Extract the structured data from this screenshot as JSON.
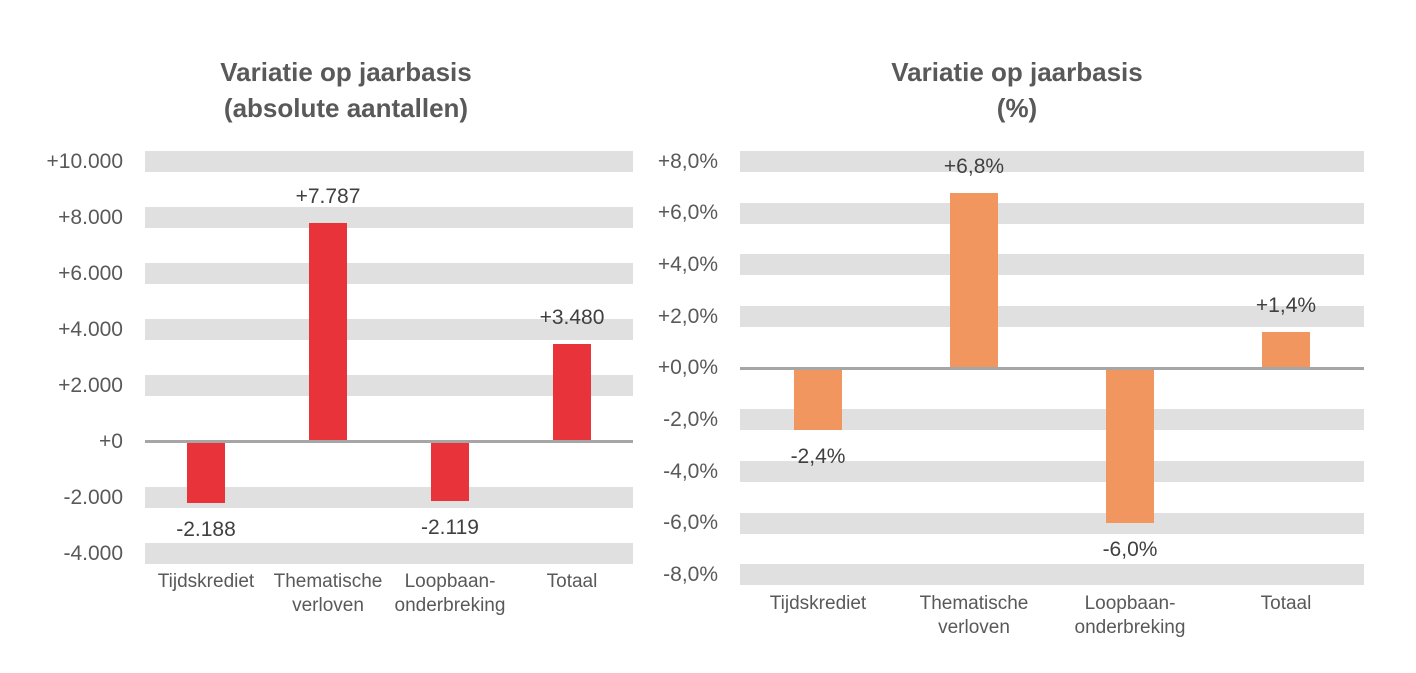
{
  "colors": {
    "stripe": "#E0E0E0",
    "axis_line": "#A6A6A6",
    "axis_text": "#595959",
    "value_text": "#404040",
    "title_text": "#595959",
    "red": "#E8333B",
    "orange": "#F0965E"
  },
  "chart_data": [
    {
      "type": "bar",
      "title": "Variatie op jaarbasis (absolute aantallen)",
      "title_lines": [
        "Variatie op jaarbasis",
        "(absolute aantallen)"
      ],
      "categories": [
        "Tijdskrediet",
        "Thematische verloven",
        "Loopbaan-onderbreking",
        "Totaal"
      ],
      "category_lines": [
        [
          "Tijdskrediet"
        ],
        [
          "Thematische",
          "verloven"
        ],
        [
          "Loopbaan-",
          "onderbreking"
        ],
        [
          "Totaal"
        ]
      ],
      "values": [
        -2188,
        7787,
        -2119,
        3480
      ],
      "value_labels": [
        "-2.188",
        "+7.787",
        "-2.119",
        "+3.480"
      ],
      "bar_color": "#E8333B",
      "ylim": [
        -4000,
        10000
      ],
      "tick_step": 2000,
      "y_ticks": [
        {
          "value": 10000,
          "label": "+10.000"
        },
        {
          "value": 8000,
          "label": "+8.000"
        },
        {
          "value": 6000,
          "label": "+6.000"
        },
        {
          "value": 4000,
          "label": "+4.000"
        },
        {
          "value": 2000,
          "label": "+2.000"
        },
        {
          "value": 0,
          "label": "+0"
        },
        {
          "value": -2000,
          "label": "-2.000"
        },
        {
          "value": -4000,
          "label": "-4.000"
        }
      ],
      "grid": "striped-bands",
      "legend": "none",
      "xlabel": "",
      "ylabel": ""
    },
    {
      "type": "bar",
      "title": "Variatie op jaarbasis (%)",
      "title_lines": [
        "Variatie op jaarbasis",
        "(%)"
      ],
      "categories": [
        "Tijdskrediet",
        "Thematische verloven",
        "Loopbaan-onderbreking",
        "Totaal"
      ],
      "category_lines": [
        [
          "Tijdskrediet"
        ],
        [
          "Thematische",
          "verloven"
        ],
        [
          "Loopbaan-",
          "onderbreking"
        ],
        [
          "Totaal"
        ]
      ],
      "values": [
        -2.4,
        6.8,
        -6.0,
        1.4
      ],
      "value_labels": [
        "-2,4%",
        "+6,8%",
        "-6,0%",
        "+1,4%"
      ],
      "bar_color": "#F0965E",
      "ylim": [
        -8,
        8
      ],
      "tick_step": 2,
      "y_ticks": [
        {
          "value": 8,
          "label": "+8,0%"
        },
        {
          "value": 6,
          "label": "+6,0%"
        },
        {
          "value": 4,
          "label": "+4,0%"
        },
        {
          "value": 2,
          "label": "+2,0%"
        },
        {
          "value": 0,
          "label": "+0,0%"
        },
        {
          "value": -2,
          "label": "-2,0%"
        },
        {
          "value": -4,
          "label": "-4,0%"
        },
        {
          "value": -6,
          "label": "-6,0%"
        },
        {
          "value": -8,
          "label": "-8,0%"
        }
      ],
      "grid": "striped-bands",
      "legend": "none",
      "xlabel": "",
      "ylabel": ""
    }
  ]
}
